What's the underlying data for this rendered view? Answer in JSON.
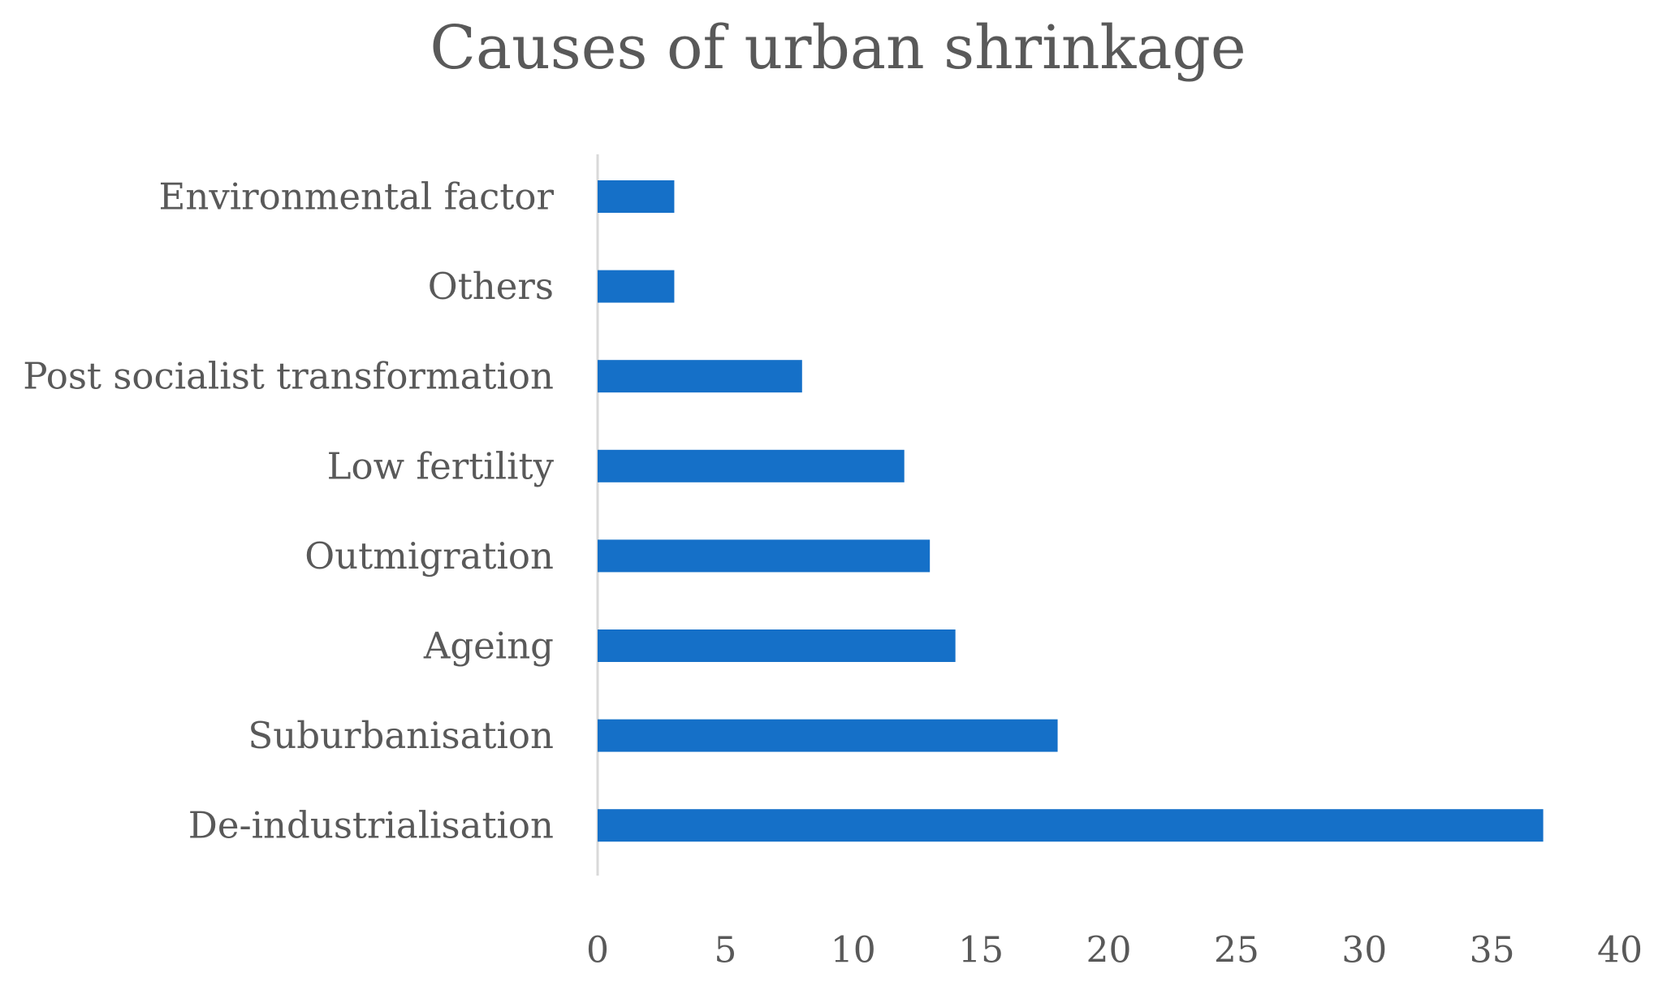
{
  "chart_data": {
    "type": "bar",
    "orientation": "horizontal",
    "title": "Causes of urban shrinkage",
    "categories": [
      "Environmental factor",
      "Others",
      "Post socialist transformation",
      "Low fertility",
      "Outmigration",
      "Ageing",
      "Suburbanisation",
      "De-industrialisation"
    ],
    "values": [
      3,
      3,
      8,
      12,
      13,
      14,
      18,
      37
    ],
    "xlim": [
      0,
      40
    ],
    "xticks": [
      0,
      5,
      10,
      15,
      20,
      25,
      30,
      35,
      40
    ],
    "xlabel": "",
    "ylabel": "",
    "grid": false,
    "legend": "none",
    "bar_color": "#1570C8",
    "text_color": "#595959",
    "axis_color": "#D9D9D9"
  }
}
